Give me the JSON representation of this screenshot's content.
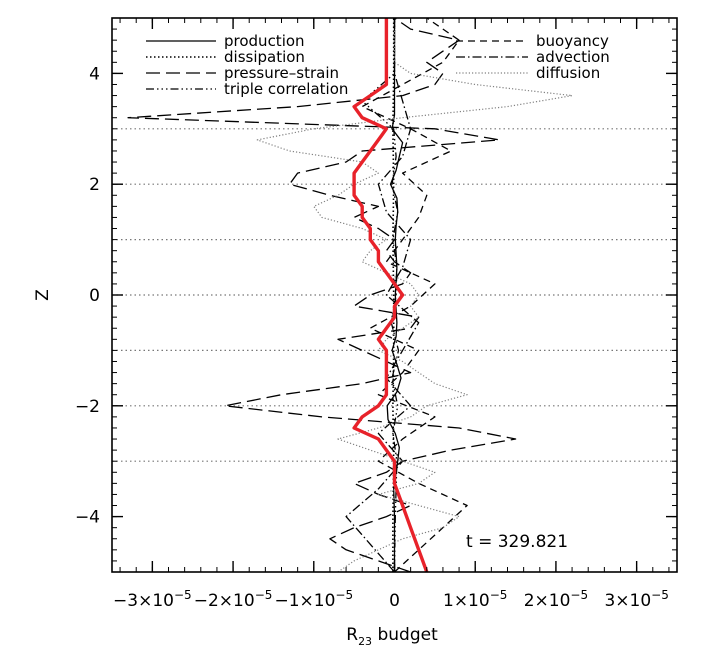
{
  "chart_data": {
    "type": "line",
    "title": "",
    "xlabel": "R",
    "xlabel_subscript": "23",
    "xlabel_suffix": " budget",
    "ylabel": "Z",
    "xlim": [
      -3.5e-05,
      3.5e-05
    ],
    "ylim": [
      -5,
      5
    ],
    "x_ticks": [
      -3e-05,
      -2e-05,
      -1e-05,
      0,
      1e-05,
      2e-05,
      3e-05
    ],
    "x_tick_labels": [
      {
        "mant": "−3×10",
        "exp": "−5"
      },
      {
        "mant": "−2×10",
        "exp": "−5"
      },
      {
        "mant": "−1×10",
        "exp": "−5"
      },
      {
        "mant": "0",
        "exp": ""
      },
      {
        "mant": "1×10",
        "exp": "−5"
      },
      {
        "mant": "2×10",
        "exp": "−5"
      },
      {
        "mant": "3×10",
        "exp": "−5"
      }
    ],
    "y_ticks": [
      -4,
      -2,
      0,
      2,
      4
    ],
    "y_tick_labels": [
      "−4",
      "−2",
      "0",
      "2",
      "4"
    ],
    "reference_lines_z": [
      3,
      2,
      1,
      0,
      -1,
      -2,
      -3
    ],
    "annotation": "t = 329.821",
    "legend": [
      {
        "label": "production",
        "style": "solid",
        "position": "left"
      },
      {
        "label": "dissipation",
        "style": "dotted",
        "position": "left"
      },
      {
        "label": "pressure–strain",
        "style": "longdash",
        "position": "left"
      },
      {
        "label": "triple correlation",
        "style": "dashdotdotdot",
        "position": "left"
      },
      {
        "label": "buoyancy",
        "style": "dashed",
        "position": "right"
      },
      {
        "label": "advection",
        "style": "dashdot",
        "position": "right"
      },
      {
        "label": "diffusion",
        "style": "fine-dotted",
        "position": "right"
      }
    ],
    "series": [
      {
        "name": "production",
        "style": "solid",
        "color": "#000000",
        "z": [
          -5,
          -4.5,
          -4,
          -3.5,
          -3,
          -2.75,
          -2.5,
          -2.25,
          -2,
          -1.75,
          -1.5,
          -1.25,
          -1,
          -0.75,
          -0.5,
          -0.25,
          0,
          0.25,
          0.5,
          0.75,
          1,
          1.25,
          1.5,
          1.75,
          2,
          2.25,
          2.5,
          2.75,
          3,
          3.25,
          3.5,
          4,
          4.5,
          5
        ],
        "values": [
          0,
          0,
          0,
          -1e-07,
          4e-07,
          6e-07,
          1e-07,
          -8e-07,
          -9e-07,
          3e-07,
          8e-07,
          3e-07,
          -3e-07,
          2e-07,
          3e-07,
          2e-07,
          1e-07,
          2e-07,
          3e-07,
          2e-07,
          1e-07,
          2e-07,
          4e-07,
          3e-07,
          -5e-07,
          2e-07,
          6e-07,
          1e-06,
          -3e-07,
          0,
          0,
          0,
          0,
          0
        ]
      },
      {
        "name": "dissipation",
        "style": "dotted",
        "color": "#000000",
        "z": [
          -5,
          -4,
          -3,
          -2,
          -1,
          0,
          1,
          2,
          3,
          4,
          5
        ],
        "values": [
          -2e-07,
          -2e-07,
          -1e-07,
          -2e-07,
          -1e-07,
          -1e-07,
          -2e-07,
          -1e-07,
          -2e-07,
          -1e-07,
          -1e-07
        ]
      },
      {
        "name": "pressure–strain",
        "style": "longdash",
        "color": "#000000",
        "z": [
          -5,
          -4.8,
          -4.6,
          -4.4,
          -4.2,
          -4.0,
          -3.8,
          -3.6,
          -3.4,
          -3.2,
          -3.0,
          -2.8,
          -2.6,
          -2.4,
          -2.2,
          -2.0,
          -1.8,
          -1.6,
          -1.4,
          -1.2,
          -1.0,
          -0.8,
          -0.6,
          -0.4,
          -0.2,
          0.0,
          0.2,
          0.4,
          0.6,
          0.8,
          1.0,
          1.2,
          1.4,
          1.6,
          1.8,
          2.0,
          2.2,
          2.4,
          2.6,
          2.8,
          3.0,
          3.2,
          3.4,
          3.6,
          3.8,
          4.0,
          4.2,
          4.4,
          4.6,
          4.8,
          5.0
        ],
        "values": [
          2e-06,
          -2e-06,
          -6e-06,
          -8e-06,
          -5e-06,
          -1e-06,
          2e-06,
          -2e-06,
          -5e-06,
          -1e-06,
          1e-06,
          7e-06,
          1.5e-05,
          8e-06,
          -9e-06,
          -2.1e-05,
          -1.4e-05,
          -4e-06,
          2e-06,
          -1e-06,
          -4e-06,
          -7e-06,
          2e-06,
          3e-06,
          -5e-06,
          -3e-06,
          1e-06,
          2e-06,
          0,
          -1e-06,
          0,
          -2e-06,
          -5e-06,
          -2e-06,
          -8e-06,
          -1.3e-05,
          -1.2e-05,
          -6e-06,
          -4e-06,
          1.3e-05,
          5e-06,
          -3.3e-05,
          -1.2e-05,
          1e-06,
          5e-06,
          6e-06,
          4e-06,
          6e-06,
          8e-06,
          2e-06,
          0
        ]
      },
      {
        "name": "triple correlation",
        "style": "dashdotdotdot",
        "color": "#000000",
        "z": [
          -5,
          -4,
          -3,
          -2.5,
          -2,
          -1.5,
          -1,
          -0.5,
          0,
          0.5,
          1,
          1.5,
          2,
          2.5,
          3,
          3.5,
          4,
          5
        ],
        "values": [
          0,
          1e-07,
          3e-07,
          -2e-07,
          4e-07,
          -3e-07,
          5e-07,
          -4e-07,
          2e-07,
          3e-07,
          -2e-07,
          4e-07,
          -3e-07,
          2e-07,
          -1e-07,
          -4e-06,
          0,
          0
        ]
      },
      {
        "name": "buoyancy",
        "style": "dashed",
        "color": "#000000",
        "z": [
          -5,
          -4.6,
          -4.2,
          -3.8,
          -3.4,
          -3.0,
          -2.6,
          -2.2,
          -1.8,
          -1.4,
          -1.0,
          -0.6,
          -0.2,
          0.2,
          0.6,
          1.0,
          1.4,
          1.8,
          2.2,
          2.6,
          3.0,
          3.4,
          3.8,
          4.2,
          4.6,
          5.0
        ],
        "values": [
          0,
          3e-06,
          6e-06,
          9e-06,
          3e-06,
          -2e-06,
          1e-06,
          5e-06,
          -2e-06,
          1e-06,
          3e-06,
          -3e-06,
          2e-06,
          5e-06,
          -1e-06,
          1e-06,
          3e-06,
          4e-06,
          1e-06,
          7e-06,
          2e-06,
          -4e-06,
          1e-06,
          6e-06,
          8e-06,
          4e-06
        ]
      },
      {
        "name": "advection",
        "style": "dashdot",
        "color": "#000000",
        "z": [
          -5,
          -4.5,
          -4,
          -3.5,
          -3,
          -2.5,
          -2,
          -1.5,
          -1,
          -0.5,
          0,
          0.5,
          1,
          1.5,
          2,
          2.5,
          3,
          3.5,
          4,
          4.5,
          5
        ],
        "values": [
          0,
          -3e-06,
          -6e-06,
          -2e-06,
          1e-06,
          -2e-06,
          2e-06,
          -1e-06,
          1e-06,
          3e-06,
          -1e-06,
          1e-06,
          2e-06,
          -1e-06,
          -2e-06,
          1e-06,
          2e-06,
          1e-06,
          0,
          0,
          0
        ]
      },
      {
        "name": "diffusion",
        "style": "fine-dotted",
        "color": "#808080",
        "z": [
          -5,
          -4.8,
          -4.6,
          -4.4,
          -4.2,
          -4.0,
          -3.8,
          -3.6,
          -3.4,
          -3.2,
          -3.0,
          -2.8,
          -2.6,
          -2.4,
          -2.2,
          -2.0,
          -1.8,
          -1.6,
          -1.4,
          -1.2,
          -1.0,
          -0.8,
          -0.6,
          -0.4,
          -0.2,
          0.0,
          0.2,
          0.4,
          0.6,
          0.8,
          1.0,
          1.2,
          1.4,
          1.6,
          1.8,
          2.0,
          2.2,
          2.4,
          2.6,
          2.8,
          3.0,
          3.2,
          3.4,
          3.6,
          3.8,
          4.0,
          4.2,
          4.4,
          4.6,
          4.8,
          5.0
        ],
        "values": [
          -7e-06,
          -5e-06,
          -2e-06,
          1e-06,
          6e-06,
          8e-06,
          3e-06,
          -2e-06,
          3e-06,
          5e-06,
          1e-06,
          -3e-06,
          -7e-06,
          -2e-06,
          2e-06,
          4e-06,
          9e-06,
          5e-06,
          3e-06,
          1e-06,
          -2e-06,
          -1e-06,
          1e-06,
          3e-06,
          2e-06,
          3e-06,
          2e-06,
          -1e-06,
          -4e-06,
          -3e-06,
          -1e-06,
          -4e-06,
          -9e-06,
          -1e-05,
          -7e-06,
          -5e-06,
          -2e-06,
          -4e-06,
          -1.3e-05,
          -1.7e-05,
          -1e-05,
          1e-06,
          1.4e-05,
          2.2e-05,
          1e-05,
          2e-06,
          0,
          0,
          0,
          0,
          0
        ]
      },
      {
        "name": "",
        "style": "solid-thick",
        "color": "#e8222a",
        "z": [
          -5.0,
          -4.6,
          -4.2,
          -3.8,
          -3.4,
          -3.0,
          -2.8,
          -2.6,
          -2.4,
          -2.2,
          -2.0,
          -1.8,
          -1.6,
          -1.4,
          -1.2,
          -1.0,
          -0.8,
          -0.6,
          -0.4,
          -0.2,
          0.0,
          0.2,
          0.4,
          0.6,
          0.8,
          1.0,
          1.2,
          1.4,
          1.6,
          1.8,
          2.0,
          2.2,
          2.4,
          2.6,
          2.8,
          3.0,
          3.2,
          3.4,
          3.6,
          3.8,
          4.0,
          4.2,
          4.4,
          4.6,
          4.8,
          5.0
        ],
        "values": [
          4e-06,
          3e-06,
          2e-06,
          1e-06,
          0,
          0,
          -1e-06,
          -2e-06,
          -5e-06,
          -4e-06,
          -2e-06,
          -1e-06,
          -1e-06,
          -1e-06,
          -1e-06,
          -1e-06,
          -2e-06,
          -1e-06,
          0,
          0,
          1e-06,
          0,
          -1e-06,
          -2e-06,
          -2e-06,
          -3e-06,
          -3e-06,
          -4e-06,
          -4e-06,
          -5e-06,
          -5e-06,
          -5e-06,
          -4e-06,
          -3e-06,
          -2e-06,
          -1e-06,
          -4e-06,
          -5e-06,
          -3e-06,
          -1e-06,
          -1e-06,
          -1e-06,
          -1e-06,
          -1e-06,
          -1e-06,
          -1e-06
        ]
      }
    ]
  }
}
